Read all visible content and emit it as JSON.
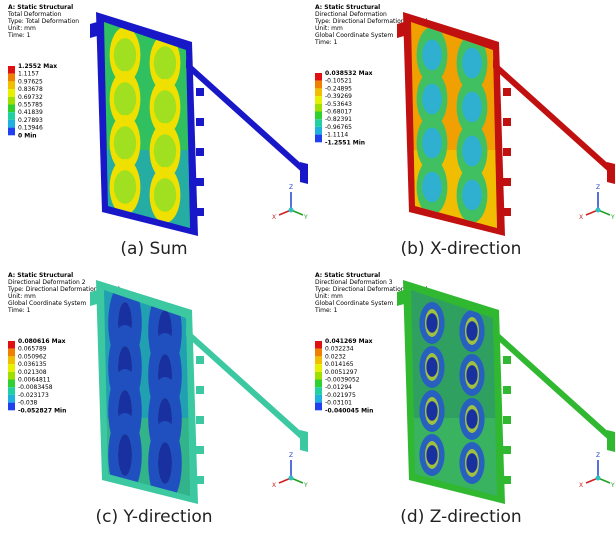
{
  "axis_labels": {
    "x": "X",
    "y": "Y",
    "z": "Z"
  },
  "panels": [
    {
      "header": [
        "A: Static Structural",
        "Total Deformation",
        "Type: Total Deformation",
        "Unit: mm",
        "Time: 1"
      ],
      "legend": [
        "1.2552 Max",
        "1.1157",
        "0.97625",
        "0.83678",
        "0.69732",
        "0.55785",
        "0.41839",
        "0.27893",
        "0.13946",
        "0 Min"
      ],
      "caption": "(a) Sum"
    },
    {
      "header": [
        "A: Static Structural",
        "Directional Deformation",
        "Type: Directional Deformation(X Axis)",
        "Unit: mm",
        "Global Coordinate System",
        "Time: 1"
      ],
      "legend": [
        "0.038532 Max",
        "-0.10521",
        "-0.24895",
        "-0.39269",
        "-0.53643",
        "-0.68017",
        "-0.82391",
        "-0.96765",
        "-1.1114",
        "-1.2551 Min"
      ],
      "caption": "(b) X-direction"
    },
    {
      "header": [
        "A: Static Structural",
        "Directional Deformation 2",
        "Type: Directional Deformation(Y Axis)",
        "Unit: mm",
        "Global Coordinate System",
        "Time: 1"
      ],
      "legend": [
        "0.080616 Max",
        "0.065789",
        "0.050962",
        "0.036135",
        "0.021308",
        "0.0064811",
        "-0.0083458",
        "-0.023173",
        "-0.038",
        "-0.052827 Min"
      ],
      "caption": "(c) Y-direction"
    },
    {
      "header": [
        "A: Static Structural",
        "Directional Deformation 3",
        "Type: Directional Deformation(Z Axis)",
        "Unit: mm",
        "Global Coordinate System",
        "Time: 1"
      ],
      "legend": [
        "0.041269 Max",
        "0.032234",
        "0.0232",
        "0.014165",
        "0.0051297",
        "-0.0039052",
        "-0.01294",
        "-0.021975",
        "-0.03101",
        "-0.040045 Min"
      ],
      "caption": "(d) Z-direction"
    }
  ]
}
